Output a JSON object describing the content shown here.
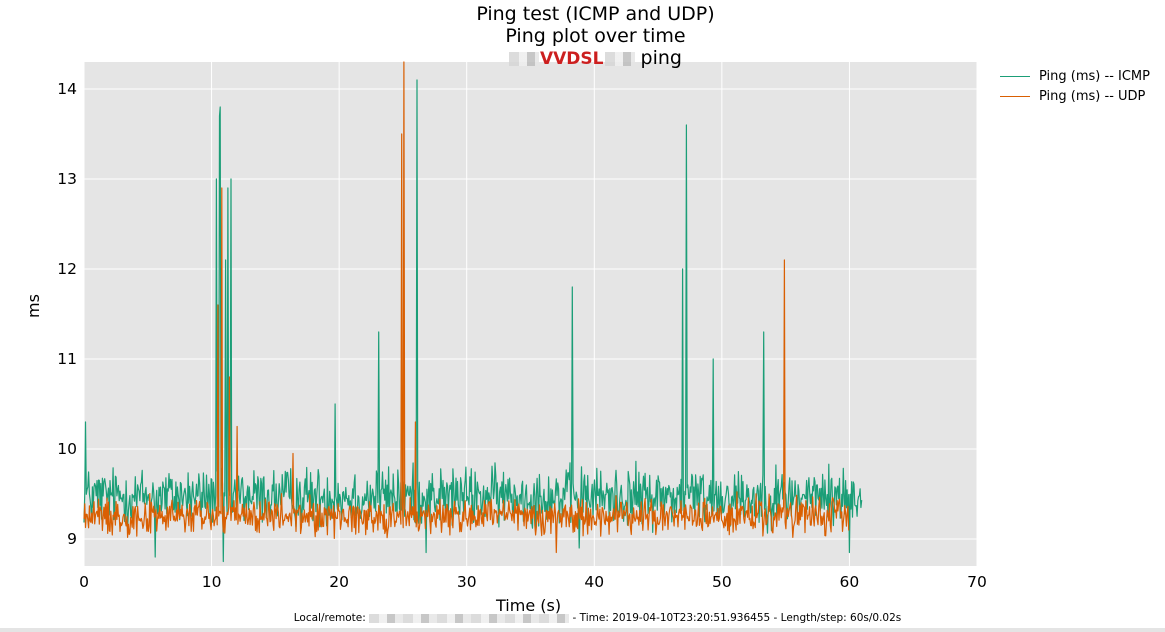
{
  "chart_data": {
    "type": "line",
    "title": "Ping test (ICMP and UDP)",
    "subtitle": "Ping plot over time",
    "subtitle2_brand": "VVDSL",
    "subtitle2_suffix": "ping",
    "xlabel": "Time (s)",
    "ylabel": "ms",
    "xlim": [
      0,
      70
    ],
    "ylim": [
      8.7,
      14.3
    ],
    "xticks": [
      0,
      10,
      20,
      30,
      40,
      50,
      60,
      70
    ],
    "yticks": [
      9,
      10,
      11,
      12,
      13,
      14
    ],
    "grid": true,
    "legend_position": "outside-right",
    "background_color": "#e5e5e5",
    "series": [
      {
        "name": "Ping (ms) -- ICMP",
        "color": "#1b9e77",
        "baseline_range": [
          9.0,
          9.95
        ],
        "x_end": 61,
        "spikes": [
          [
            0.1,
            10.3
          ],
          [
            10.4,
            13.0
          ],
          [
            10.6,
            13.7
          ],
          [
            10.7,
            13.8
          ],
          [
            11.1,
            12.1
          ],
          [
            11.3,
            12.9
          ],
          [
            11.5,
            13.0
          ],
          [
            19.7,
            10.5
          ],
          [
            23.1,
            11.3
          ],
          [
            26.1,
            14.1
          ],
          [
            38.3,
            11.8
          ],
          [
            46.9,
            12.0
          ],
          [
            47.2,
            13.6
          ],
          [
            49.3,
            11.0
          ],
          [
            53.3,
            11.3
          ],
          [
            5.6,
            8.8
          ],
          [
            10.9,
            8.75
          ],
          [
            26.8,
            8.85
          ],
          [
            38.8,
            8.9
          ],
          [
            60.0,
            8.85
          ]
        ]
      },
      {
        "name": "Ping (ms) -- UDP",
        "color": "#d95f02",
        "baseline_range": [
          8.95,
          9.55
        ],
        "x_end": 60,
        "spikes": [
          [
            10.5,
            11.6
          ],
          [
            10.8,
            12.9
          ],
          [
            11.4,
            10.8
          ],
          [
            12.0,
            10.25
          ],
          [
            16.4,
            9.95
          ],
          [
            24.9,
            13.5
          ],
          [
            25.1,
            14.3
          ],
          [
            26.0,
            10.3
          ],
          [
            37.0,
            8.85
          ],
          [
            54.9,
            12.1
          ]
        ]
      }
    ]
  },
  "footer": {
    "prefix": "Local/remote:",
    "suffix": "- Time: 2019-04-10T23:20:51.936455 - Length/step: 60s/0.02s"
  }
}
